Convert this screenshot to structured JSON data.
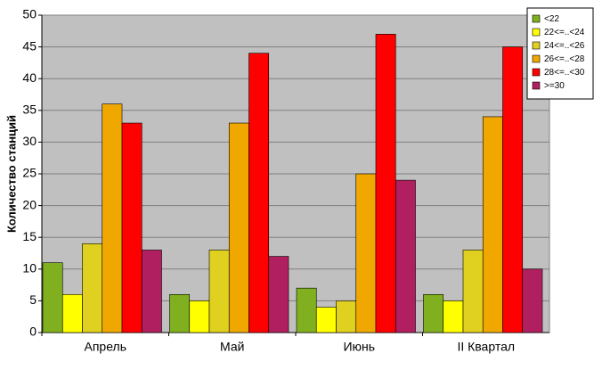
{
  "chart_data": {
    "type": "bar",
    "y_label": "Количество станций",
    "categories": [
      "Апрель",
      "Май",
      "Июнь",
      "II Квартал"
    ],
    "series": [
      {
        "name": "<22",
        "color": "#80b020",
        "values": [
          11,
          6,
          7,
          6
        ]
      },
      {
        "name": "22<=..<24",
        "color": "#ffff00",
        "values": [
          6,
          5,
          4,
          5
        ]
      },
      {
        "name": "24<=..<26",
        "color": "#e0d020",
        "values": [
          14,
          13,
          5,
          13
        ]
      },
      {
        "name": "26<=..<28",
        "color": "#f0a800",
        "values": [
          36,
          33,
          25,
          34
        ]
      },
      {
        "name": "28<=..<30",
        "color": "#ff0000",
        "values": [
          33,
          44,
          47,
          45
        ]
      },
      {
        "name": ">=30",
        "color": "#b02060",
        "values": [
          13,
          12,
          24,
          10
        ]
      }
    ],
    "ylim": [
      0,
      50
    ],
    "yticks": [
      0,
      5,
      10,
      15,
      20,
      25,
      30,
      35,
      40,
      45,
      50
    ],
    "grid": true,
    "legend": "top-right"
  }
}
